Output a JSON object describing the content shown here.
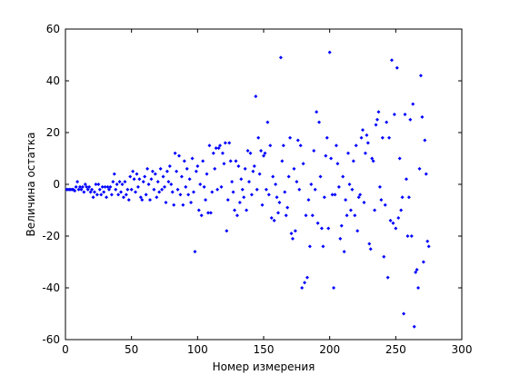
{
  "chart_data": {
    "type": "scatter",
    "x_label": "Номер измерения",
    "y_label": "Величина остатка",
    "color": "#0000ff",
    "xlim": [
      0,
      300
    ],
    "xticks": [
      0,
      50,
      100,
      150,
      200,
      250,
      300
    ],
    "ylim": [
      -60,
      60
    ],
    "yticks": [
      -60,
      -40,
      -20,
      0,
      20,
      40,
      60
    ],
    "grid": false,
    "x": [
      1,
      2,
      3,
      4,
      5,
      6,
      7,
      8,
      9,
      10,
      11,
      12,
      13,
      14,
      15,
      16,
      17,
      18,
      19,
      20,
      21,
      22,
      23,
      24,
      25,
      26,
      27,
      28,
      29,
      30,
      31,
      32,
      33,
      34,
      35,
      36,
      37,
      38,
      39,
      40,
      41,
      42,
      43,
      44,
      45,
      46,
      47,
      48,
      49,
      50,
      51,
      52,
      53,
      54,
      55,
      56,
      57,
      58,
      59,
      60,
      61,
      62,
      63,
      64,
      65,
      66,
      67,
      68,
      69,
      70,
      71,
      72,
      73,
      74,
      75,
      76,
      77,
      78,
      79,
      80,
      81,
      82,
      83,
      84,
      85,
      86,
      87,
      88,
      89,
      90,
      91,
      92,
      93,
      94,
      95,
      96,
      97,
      98,
      99,
      100,
      101,
      102,
      103,
      104,
      105,
      106,
      107,
      108,
      109,
      110,
      111,
      112,
      113,
      114,
      115,
      116,
      117,
      118,
      119,
      120,
      121,
      122,
      123,
      124,
      125,
      126,
      127,
      128,
      129,
      130,
      131,
      132,
      133,
      134,
      135,
      136,
      137,
      138,
      139,
      140,
      141,
      142,
      143,
      144,
      145,
      146,
      147,
      148,
      149,
      150,
      151,
      152,
      153,
      154,
      155,
      156,
      157,
      158,
      159,
      160,
      161,
      162,
      163,
      164,
      165,
      166,
      167,
      168,
      169,
      170,
      171,
      172,
      173,
      174,
      175,
      176,
      177,
      178,
      179,
      180,
      181,
      182,
      183,
      184,
      185,
      186,
      187,
      188,
      189,
      190,
      191,
      192,
      193,
      194,
      195,
      196,
      197,
      198,
      199,
      200,
      201,
      202,
      203,
      204,
      205,
      206,
      207,
      208,
      209,
      210,
      211,
      212,
      213,
      214,
      215,
      216,
      217,
      218,
      219,
      220,
      221,
      222,
      223,
      224,
      225,
      226,
      227,
      228,
      229,
      230,
      231,
      232,
      233,
      234,
      235,
      236,
      237,
      238,
      239,
      240,
      241,
      242,
      243,
      244,
      245,
      246,
      247,
      248,
      249,
      250,
      251,
      252,
      253,
      254,
      255,
      256,
      257,
      258,
      259,
      260,
      261,
      262,
      263,
      264,
      265,
      266,
      267,
      268,
      269,
      270,
      271,
      272,
      273,
      274,
      275
    ],
    "values": [
      -2,
      -2,
      -2,
      -2,
      -2,
      -2,
      -2.5,
      -1,
      1,
      -2,
      -1,
      -2,
      -1,
      -3,
      0,
      -1,
      -2,
      -1,
      -3,
      -2,
      -5,
      -3,
      0,
      -4,
      0,
      -2,
      -4,
      -1,
      -3,
      -1,
      -5,
      -1,
      -2,
      -1,
      -4,
      1,
      4,
      -2,
      0,
      -4,
      1,
      -3,
      0,
      -5,
      1,
      -4,
      -2,
      -6,
      3,
      -2,
      5,
      2,
      -3,
      4,
      -1,
      2,
      -5,
      -6,
      1,
      3,
      -4,
      6,
      0,
      -6,
      2,
      5,
      -2,
      4,
      -5,
      1,
      -3,
      6,
      -2,
      3,
      -1,
      -7,
      5,
      1,
      7,
      0,
      -3,
      -8,
      12,
      5,
      -2,
      11,
      -4,
      3,
      -8,
      9,
      -1,
      6,
      -4,
      2,
      -7,
      10,
      -3,
      -26,
      5,
      7,
      -10,
      0,
      -12,
      9,
      -1,
      -6,
      4,
      -11,
      15,
      -11,
      -3,
      12,
      6,
      14,
      -2,
      14,
      15,
      -1,
      12,
      8,
      16,
      -18,
      -6,
      16,
      9,
      1,
      -3,
      -10,
      9,
      -12,
      7,
      -7,
      2,
      -2,
      -5,
      6,
      -10,
      13,
      1,
      12,
      -4,
      5,
      7,
      34,
      -2,
      18,
      4,
      13,
      -8,
      11,
      12,
      -2,
      24,
      -4,
      15,
      -13,
      3,
      -14,
      0,
      -5,
      -11,
      -7,
      49,
      9,
      15,
      -3,
      -12,
      -9,
      3,
      18,
      -19,
      -21,
      6,
      -18,
      1,
      17,
      -2,
      15,
      -40,
      8,
      -38,
      -12,
      -36,
      -6,
      -24,
      0,
      -12,
      13,
      -2,
      28,
      -15,
      24,
      3,
      -17,
      -24,
      -5,
      11,
      18,
      -17,
      51,
      10,
      -4,
      -40,
      -4,
      15,
      8,
      -1,
      -21,
      -16,
      3,
      -26,
      -6,
      -12,
      12,
      0,
      -10,
      -2,
      9,
      -12,
      15,
      -18,
      -5,
      -4,
      18,
      21,
      -7,
      12,
      19,
      16,
      -23,
      -25,
      10,
      9,
      -10,
      23,
      25,
      28,
      -1,
      -6,
      18,
      -28,
      -8,
      24,
      -36,
      18,
      -14,
      48,
      -15,
      27,
      -17,
      45,
      -13,
      10,
      -10,
      -5,
      -50,
      27,
      2,
      -20,
      -5,
      25,
      -20,
      31,
      -55,
      -34,
      -33,
      -40,
      6,
      42,
      26,
      -30,
      17,
      4,
      -22,
      -24
    ]
  }
}
